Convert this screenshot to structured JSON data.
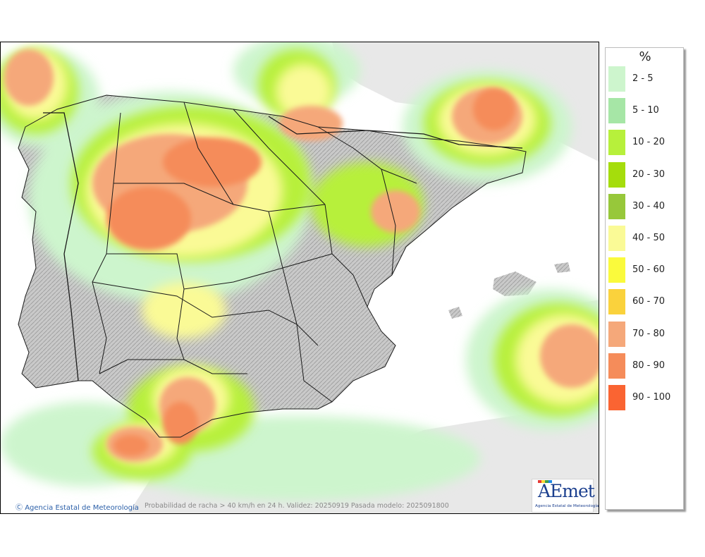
{
  "legend": {
    "title": "%",
    "items": [
      {
        "label": "2 - 5",
        "color": "#cdf5cd"
      },
      {
        "label": "5 - 10",
        "color": "#a6e6a6"
      },
      {
        "label": "10 - 20",
        "color": "#b7f03b"
      },
      {
        "label": "20 - 30",
        "color": "#a5dd0c"
      },
      {
        "label": "30 - 40",
        "color": "#97c83a"
      },
      {
        "label": "40 - 50",
        "color": "#fafa96"
      },
      {
        "label": "50 - 60",
        "color": "#fafa3c"
      },
      {
        "label": "60 - 70",
        "color": "#fad23c"
      },
      {
        "label": "70 - 80",
        "color": "#f5a87a"
      },
      {
        "label": "80 - 90",
        "color": "#f58c5a"
      },
      {
        "label": "90 - 100",
        "color": "#fa6432"
      }
    ]
  },
  "footer": {
    "credit": "Agencia Estatal de Meteorología",
    "description": "Probabilidad de racha > 40 km/h en 24 h. Validez: 20250919 Pasada modelo: 2025091800"
  },
  "logo": {
    "wordmark": "AEmet",
    "subtitle": "Agencia Estatal de Meteorología"
  }
}
